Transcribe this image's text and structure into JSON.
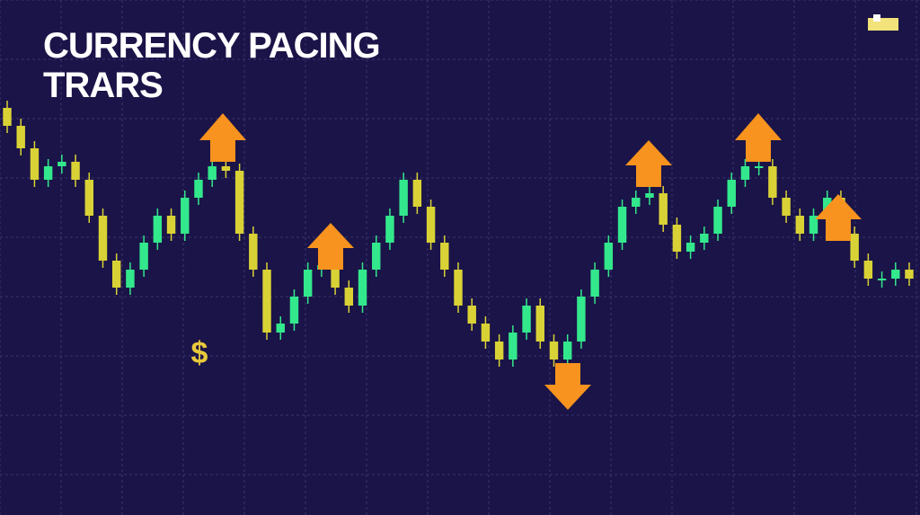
{
  "chart_data": {
    "type": "candlestick",
    "title": [
      "CURRENCY PACING",
      "TRARS"
    ],
    "annotation": "$",
    "up_color": "#33e88c",
    "down_color": "#d9d236",
    "ylim": [
      50,
      400
    ],
    "open": [
      380,
      360,
      335,
      300,
      315,
      320,
      300,
      260,
      210,
      180,
      200,
      230,
      260,
      240,
      280,
      300,
      315,
      310,
      240,
      200,
      130,
      140,
      170,
      200,
      205,
      180,
      160,
      200,
      230,
      260,
      300,
      270,
      230,
      200,
      160,
      140,
      120,
      100,
      130,
      160,
      120,
      100,
      120,
      170,
      200,
      230,
      270,
      280,
      285,
      250,
      220,
      230,
      240,
      270,
      300,
      315,
      315,
      280,
      260,
      240,
      260,
      280,
      240,
      210,
      190,
      190,
      200
    ],
    "close": [
      360,
      335,
      300,
      315,
      320,
      300,
      260,
      210,
      180,
      200,
      230,
      260,
      240,
      280,
      300,
      315,
      310,
      240,
      200,
      130,
      140,
      170,
      200,
      205,
      180,
      160,
      200,
      230,
      260,
      300,
      270,
      230,
      200,
      160,
      140,
      120,
      100,
      130,
      160,
      120,
      100,
      120,
      170,
      200,
      230,
      270,
      280,
      285,
      250,
      220,
      230,
      240,
      270,
      300,
      315,
      315,
      280,
      260,
      240,
      260,
      280,
      240,
      210,
      190,
      190,
      200,
      190
    ]
  }
}
